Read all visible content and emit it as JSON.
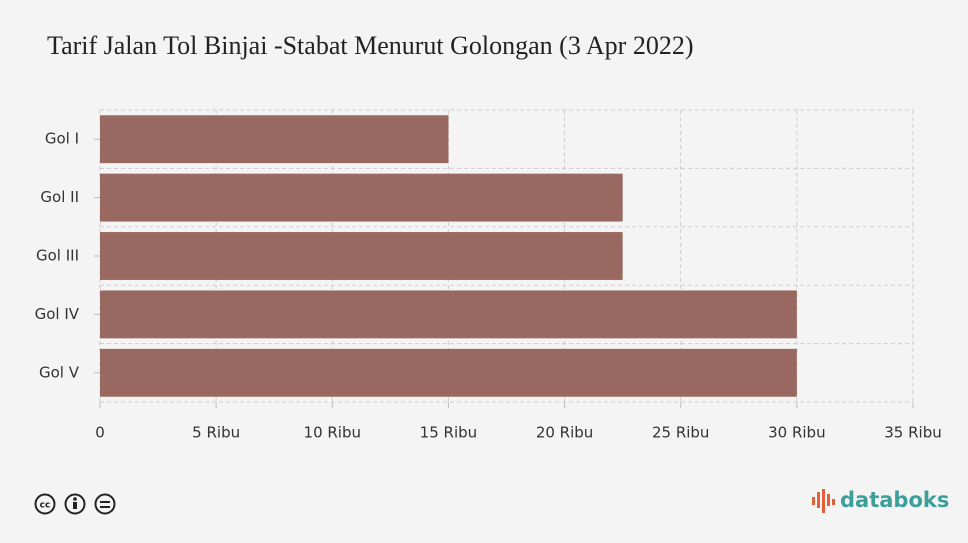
{
  "chart_data": {
    "type": "bar",
    "orientation": "horizontal",
    "title": "Tarif Jalan Tol Binjai -Stabat Menurut Golongan (3 Apr 2022)",
    "categories": [
      "Gol I",
      "Gol II",
      "Gol III",
      "Gol IV",
      "Gol V"
    ],
    "values": [
      15000,
      22500,
      22500,
      30000,
      30000
    ],
    "color": "#996860",
    "xlim": [
      0,
      35000
    ],
    "xticks": [
      0,
      {
        "value": 5000,
        "label": "5 Ribu"
      },
      {
        "value": 10000,
        "label": "10 Ribu"
      },
      {
        "value": 15000,
        "label": "15 Ribu"
      },
      {
        "value": 20000,
        "label": "20 Ribu"
      },
      {
        "value": 25000,
        "label": "25 Ribu"
      },
      {
        "value": 30000,
        "label": "30 Ribu"
      },
      {
        "value": 35000,
        "label": "35 Ribu"
      }
    ],
    "grid": true
  },
  "brand": "databoks"
}
